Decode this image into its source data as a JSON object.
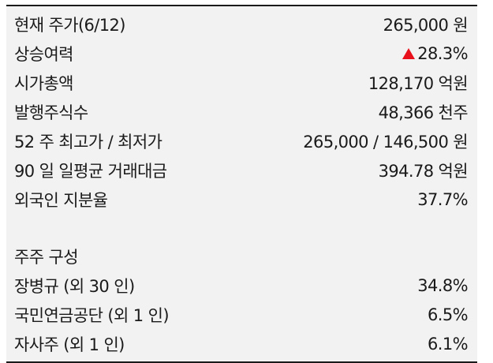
{
  "stock_info": [
    {
      "label": "현재 주가(6/12)",
      "value": "265,000 원"
    },
    {
      "label": "상승여력",
      "value": "28.3%",
      "indicator": "up-triangle",
      "indicator_color": "#e8101a"
    },
    {
      "label": "시가총액",
      "value": "128,170 억원"
    },
    {
      "label": "발행주식수",
      "value": "48,366 천주"
    },
    {
      "label": "52 주 최고가 / 최저가",
      "value": "265,000 / 146,500 원"
    },
    {
      "label": "90 일 일평균 거래대금",
      "value": "394.78 억원"
    },
    {
      "label": "외국인 지분율",
      "value": "37.7%"
    }
  ],
  "shareholders": {
    "heading": "주주 구성",
    "rows": [
      {
        "label": "장병규 (외 30 인)",
        "value": "34.8%"
      },
      {
        "label": "국민연금공단 (외 1 인)",
        "value": "6.5%"
      },
      {
        "label": "자사주 (외 1 인)",
        "value": "6.1%"
      }
    ]
  }
}
